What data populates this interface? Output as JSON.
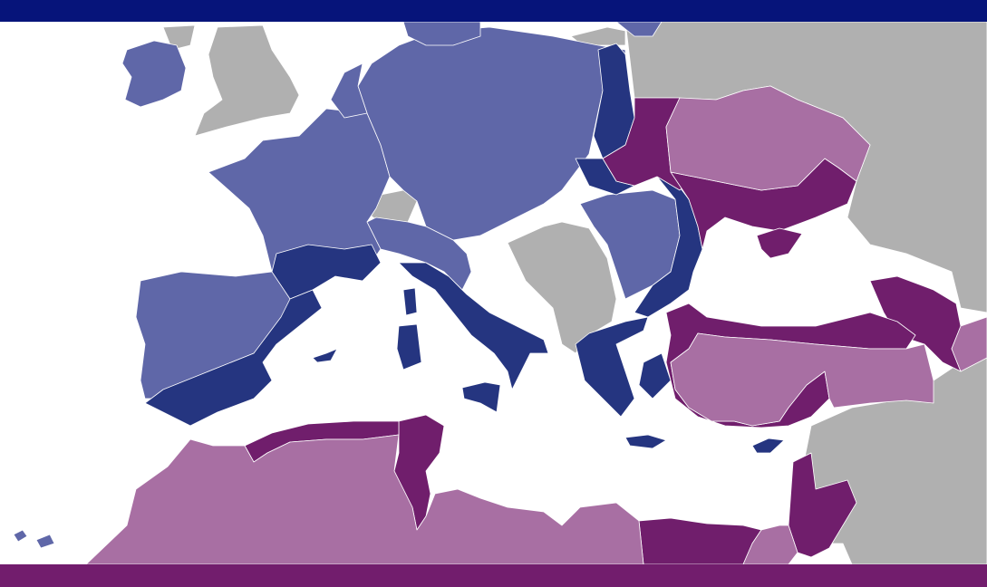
{
  "map": {
    "colors": {
      "top_bar": "#06147a",
      "bottom_bar": "#721d6d",
      "sea": "#ffffff",
      "other_land": "#b0b0b0",
      "blue_light": "#5f67a8",
      "blue_dark": "#253580",
      "purple_dark": "#701e6c",
      "purple_light": "#a86fa3"
    }
  }
}
